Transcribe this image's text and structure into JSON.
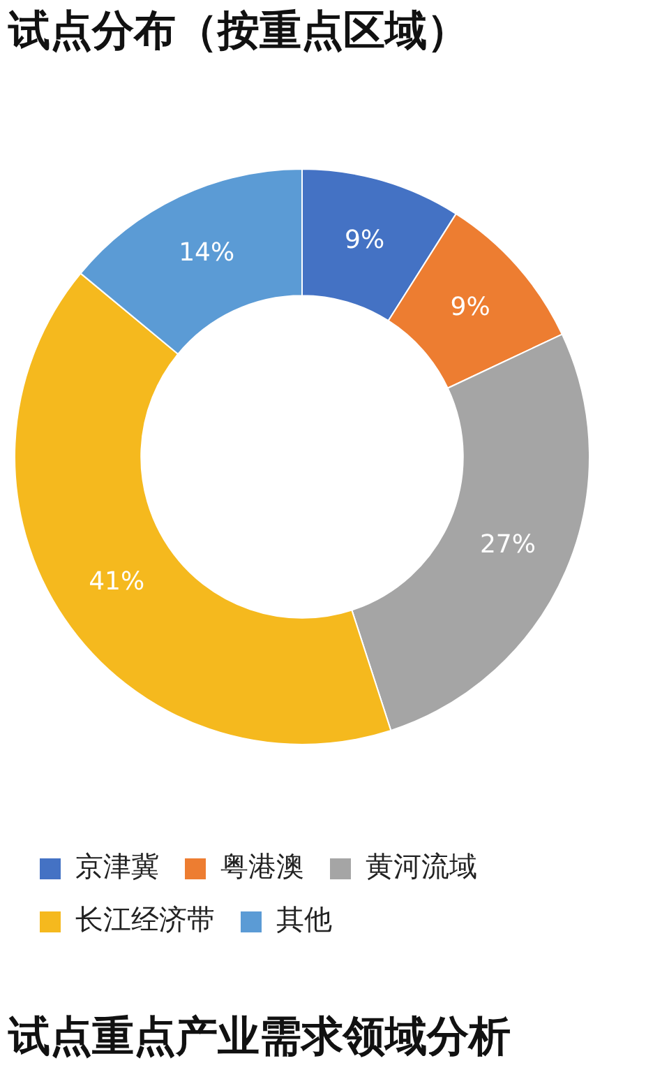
{
  "chart_data": {
    "type": "donut",
    "title": "试点分布（按重点区域）",
    "categories": [
      "京津冀",
      "粤港澳",
      "黄河流域",
      "长江经济带",
      "其他"
    ],
    "values": [
      9,
      9,
      27,
      41,
      14
    ],
    "value_labels": [
      "9%",
      "9%",
      "27%",
      "41%",
      "14%"
    ],
    "colors": [
      "#4472c4",
      "#ed7d31",
      "#a5a5a5",
      "#f5b91e",
      "#5b9bd5"
    ],
    "legend": "bottom",
    "annotations": [
      "试点重点产业需求领域分析"
    ]
  }
}
